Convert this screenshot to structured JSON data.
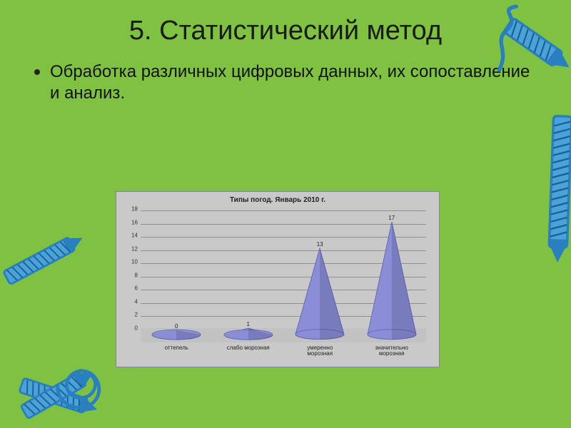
{
  "slide": {
    "background": "#7fc241",
    "title": "5. Статистический метод",
    "title_fontsize": 38,
    "title_color": "#1a1a1a",
    "bullet_text": "Обработка различных цифровых данных, их сопоставление и анализ.",
    "bullet_fontsize": 24,
    "bullet_color": "#111111"
  },
  "chart": {
    "type": "cone3d",
    "title": "Типы погод. Январь 2010 г.",
    "title_fontsize": 10,
    "background_color": "#c9c9c9",
    "grid_color": "#8f8f8f",
    "border_color": "#888888",
    "cone_fill": "#8a8ed6",
    "cone_stroke": "#5a5db0",
    "value_label_color": "#222222",
    "xlabel_color": "#222222",
    "ylabel_color": "#333333",
    "ylim": [
      0,
      18
    ],
    "ytick_step": 2,
    "categories": [
      "оттепель",
      "слабо морозная",
      "умеренно\nморозная",
      "значительно\nморозная"
    ],
    "values": [
      0,
      1,
      13,
      17
    ],
    "label_fontsize": 8
  },
  "decor": {
    "crayon_body": "#2a7fbf",
    "crayon_fill": "#4aa3d8",
    "crayon_hatch": "#1d5f94"
  }
}
